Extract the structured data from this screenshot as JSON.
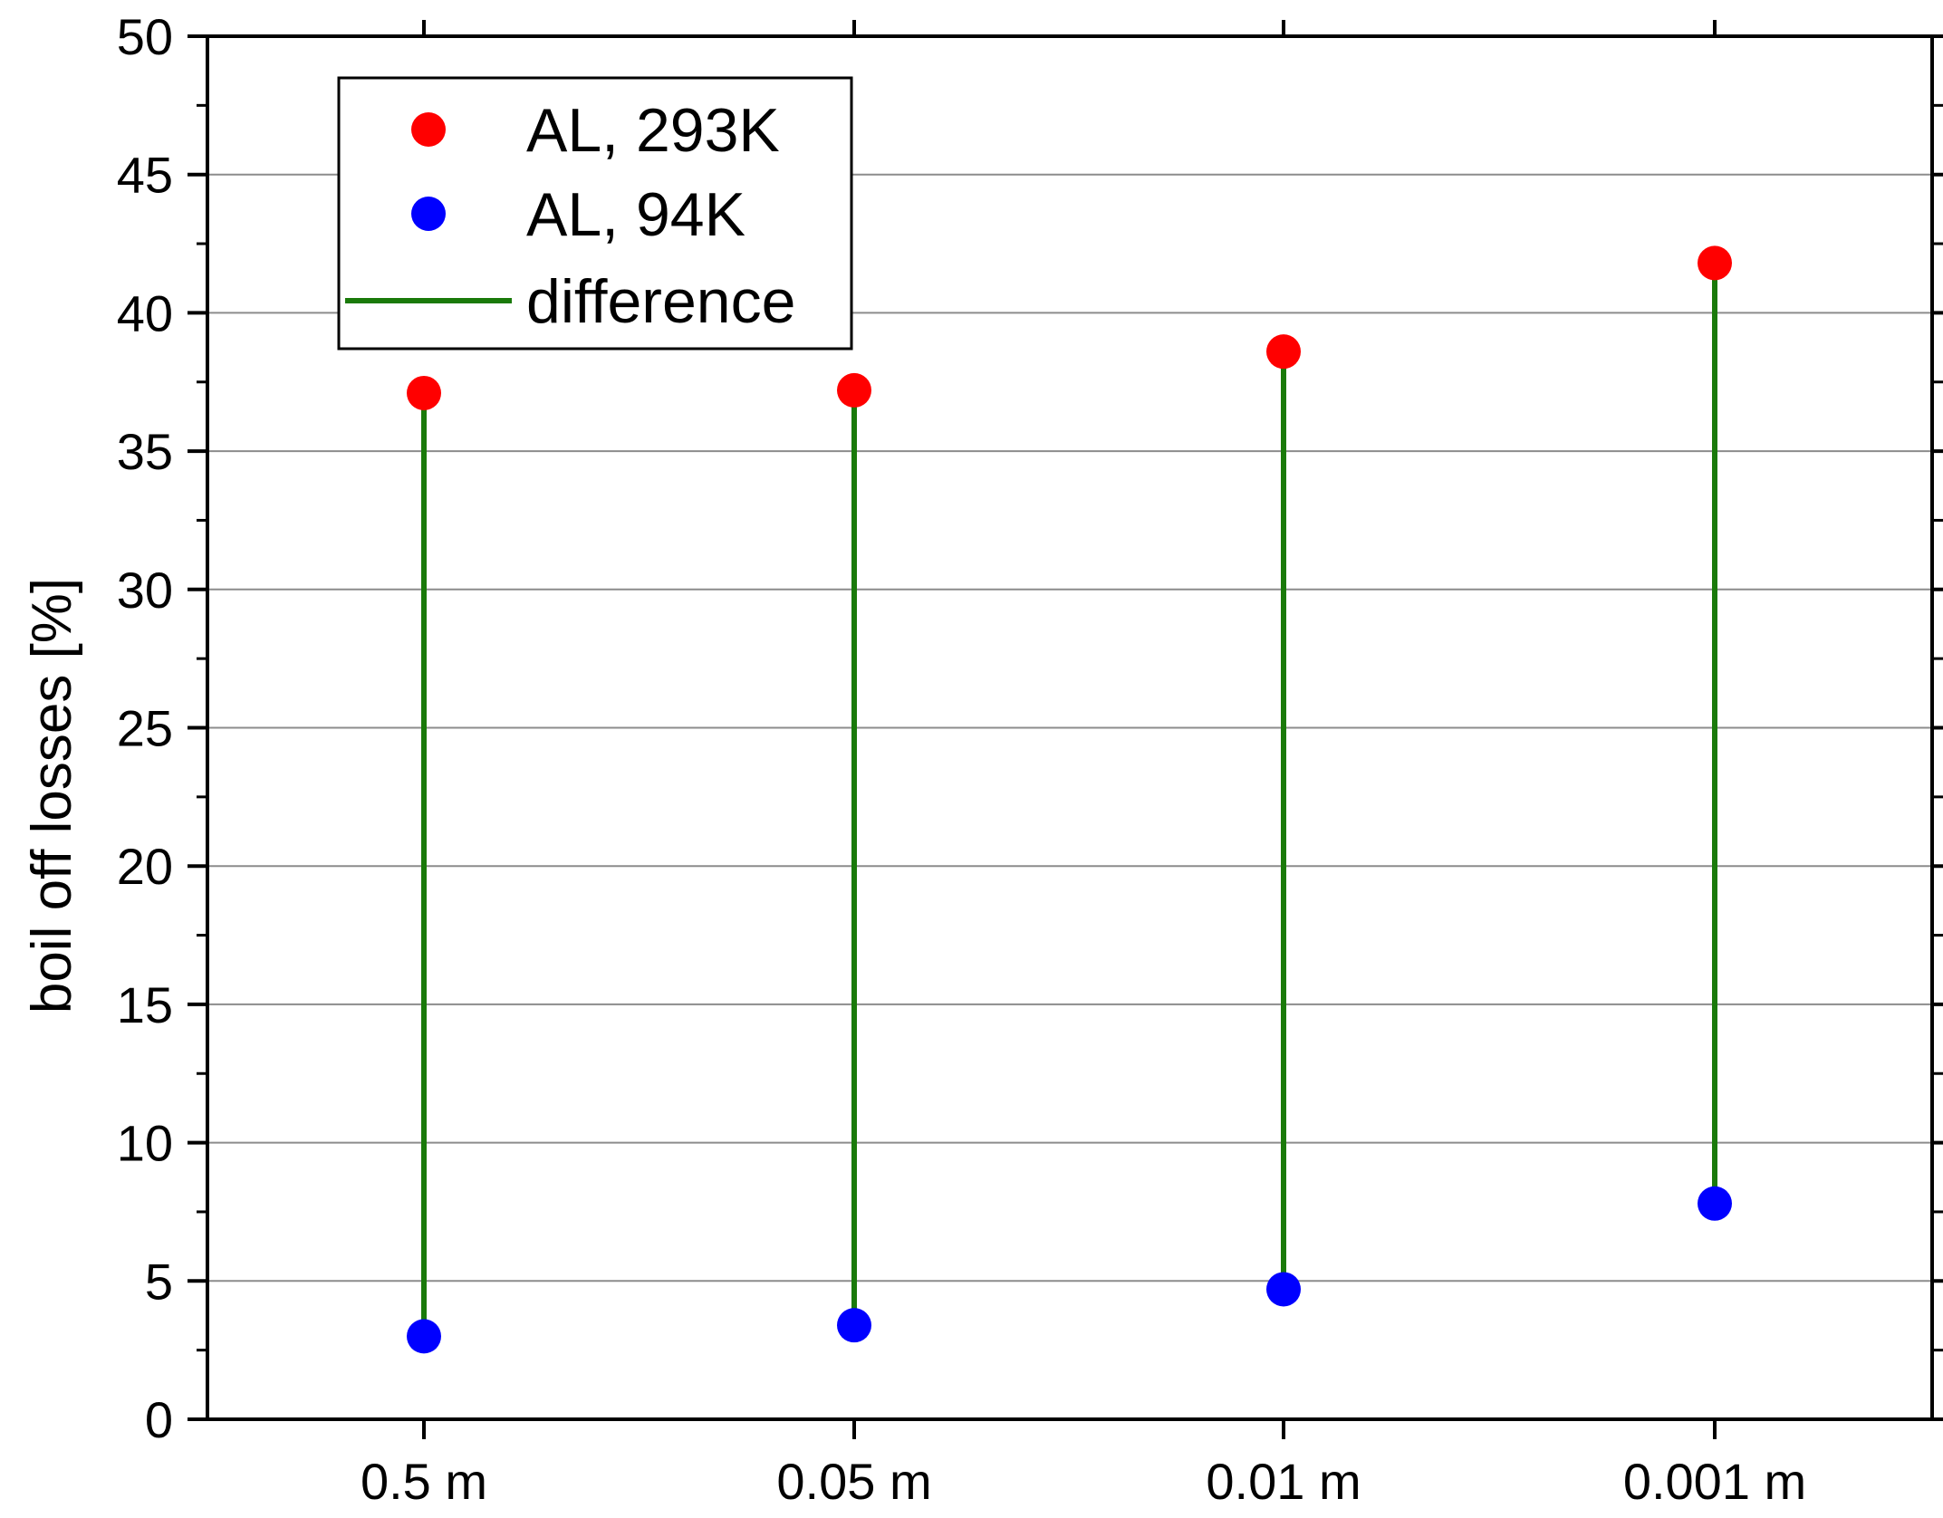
{
  "chart_data": {
    "type": "scatter",
    "categories": [
      "0.5 m",
      "0.05 m",
      "0.01 m",
      "0.001 m"
    ],
    "series": [
      {
        "name": "AL, 293K",
        "kind": "points",
        "color": "#ff0000",
        "values": [
          37.1,
          37.2,
          38.6,
          41.8
        ]
      },
      {
        "name": "AL, 94K",
        "kind": "points",
        "color": "#0000ff",
        "values": [
          3.0,
          3.4,
          4.7,
          7.8
        ]
      },
      {
        "name": "difference",
        "kind": "segments",
        "color": "#1a7a0a"
      }
    ],
    "title": "",
    "xlabel": "",
    "ylabel": "boil off losses [%]",
    "ylim": [
      0,
      50
    ],
    "yticks": [
      "0",
      "5",
      "10",
      "15",
      "20",
      "25",
      "30",
      "35",
      "40",
      "45",
      "50"
    ],
    "grid": true,
    "legend_position": "top-left"
  }
}
